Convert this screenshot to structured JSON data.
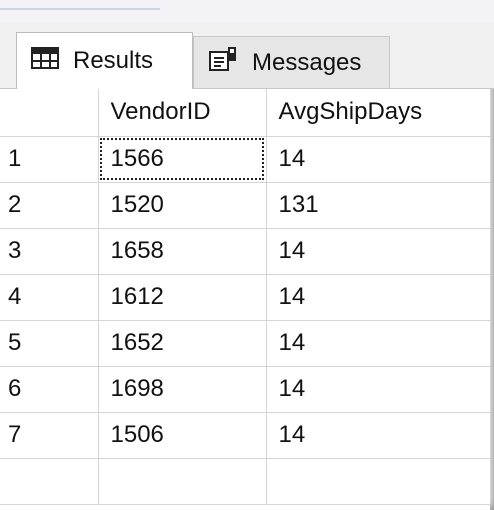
{
  "tabs": [
    {
      "label": "Results",
      "icon": "grid-table-icon",
      "active": true
    },
    {
      "label": "Messages",
      "icon": "messages-icon",
      "active": false
    }
  ],
  "grid": {
    "columns": [
      "",
      "VendorID",
      "AvgShipDays"
    ],
    "rows": [
      {
        "row": "1",
        "vendor_id": "1566",
        "avg_ship_days": "14"
      },
      {
        "row": "2",
        "vendor_id": "1520",
        "avg_ship_days": "131"
      },
      {
        "row": "3",
        "vendor_id": "1658",
        "avg_ship_days": "14"
      },
      {
        "row": "4",
        "vendor_id": "1612",
        "avg_ship_days": "14"
      },
      {
        "row": "5",
        "vendor_id": "1652",
        "avg_ship_days": "14"
      },
      {
        "row": "6",
        "vendor_id": "1698",
        "avg_ship_days": "14"
      },
      {
        "row": "7",
        "vendor_id": "1506",
        "avg_ship_days": "14"
      },
      {
        "row": "",
        "vendor_id": "",
        "avg_ship_days": ""
      }
    ],
    "selected_cell": "row 1, VendorID"
  },
  "colors": {
    "gridline": "#d4d4d4",
    "tabbar": "#f0f0f0",
    "text": "#111111"
  }
}
